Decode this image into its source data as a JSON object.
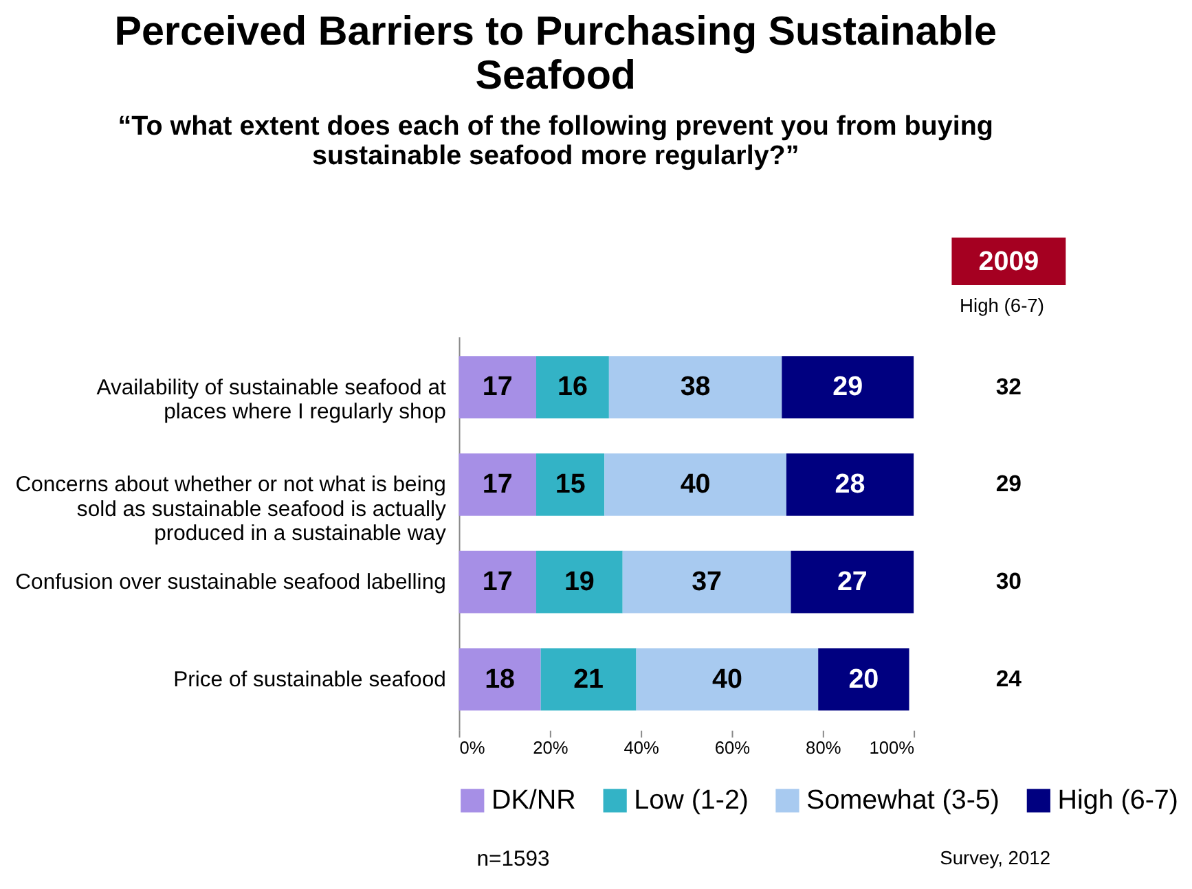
{
  "chart_data": {
    "type": "bar",
    "orientation": "horizontal",
    "stacked": true,
    "data_labels": true,
    "legend": "bottom",
    "grid": false,
    "title": "Perceived Barriers to Purchasing Sustainable Seafood",
    "subtitle": "“To what extent does each of the following prevent you from buying sustainable seafood more regularly?”",
    "categories": [
      "Availability of sustainable seafood at places where I regularly shop",
      "Concerns about whether or not what is being sold as sustainable seafood is actually produced in a sustainable way",
      "Confusion over sustainable seafood labelling",
      "Price of sustainable seafood"
    ],
    "series": [
      {
        "name": "DK/NR",
        "color": "#a68fe6",
        "values": [
          17,
          17,
          17,
          18
        ]
      },
      {
        "name": "Low (1-2)",
        "color": "#33b3c6",
        "values": [
          16,
          15,
          19,
          21
        ]
      },
      {
        "name": "Somewhat (3-5)",
        "color": "#a8caf0",
        "values": [
          38,
          40,
          37,
          40
        ]
      },
      {
        "name": "High (6-7)",
        "color": "#000080",
        "values": [
          29,
          28,
          27,
          20
        ]
      }
    ],
    "xlim": [
      0,
      100
    ],
    "xticks": [
      {
        "value": 0,
        "label": "0%"
      },
      {
        "value": 20,
        "label": "20%"
      },
      {
        "value": 40,
        "label": "40%"
      },
      {
        "value": 60,
        "label": "60%"
      },
      {
        "value": 80,
        "label": "80%"
      },
      {
        "value": 100,
        "label": "100%"
      }
    ],
    "annotations": [
      "2009",
      "High (6-7)",
      "32",
      "29",
      "30",
      "24",
      "n=1593",
      "Survey, 2012"
    ]
  }
}
